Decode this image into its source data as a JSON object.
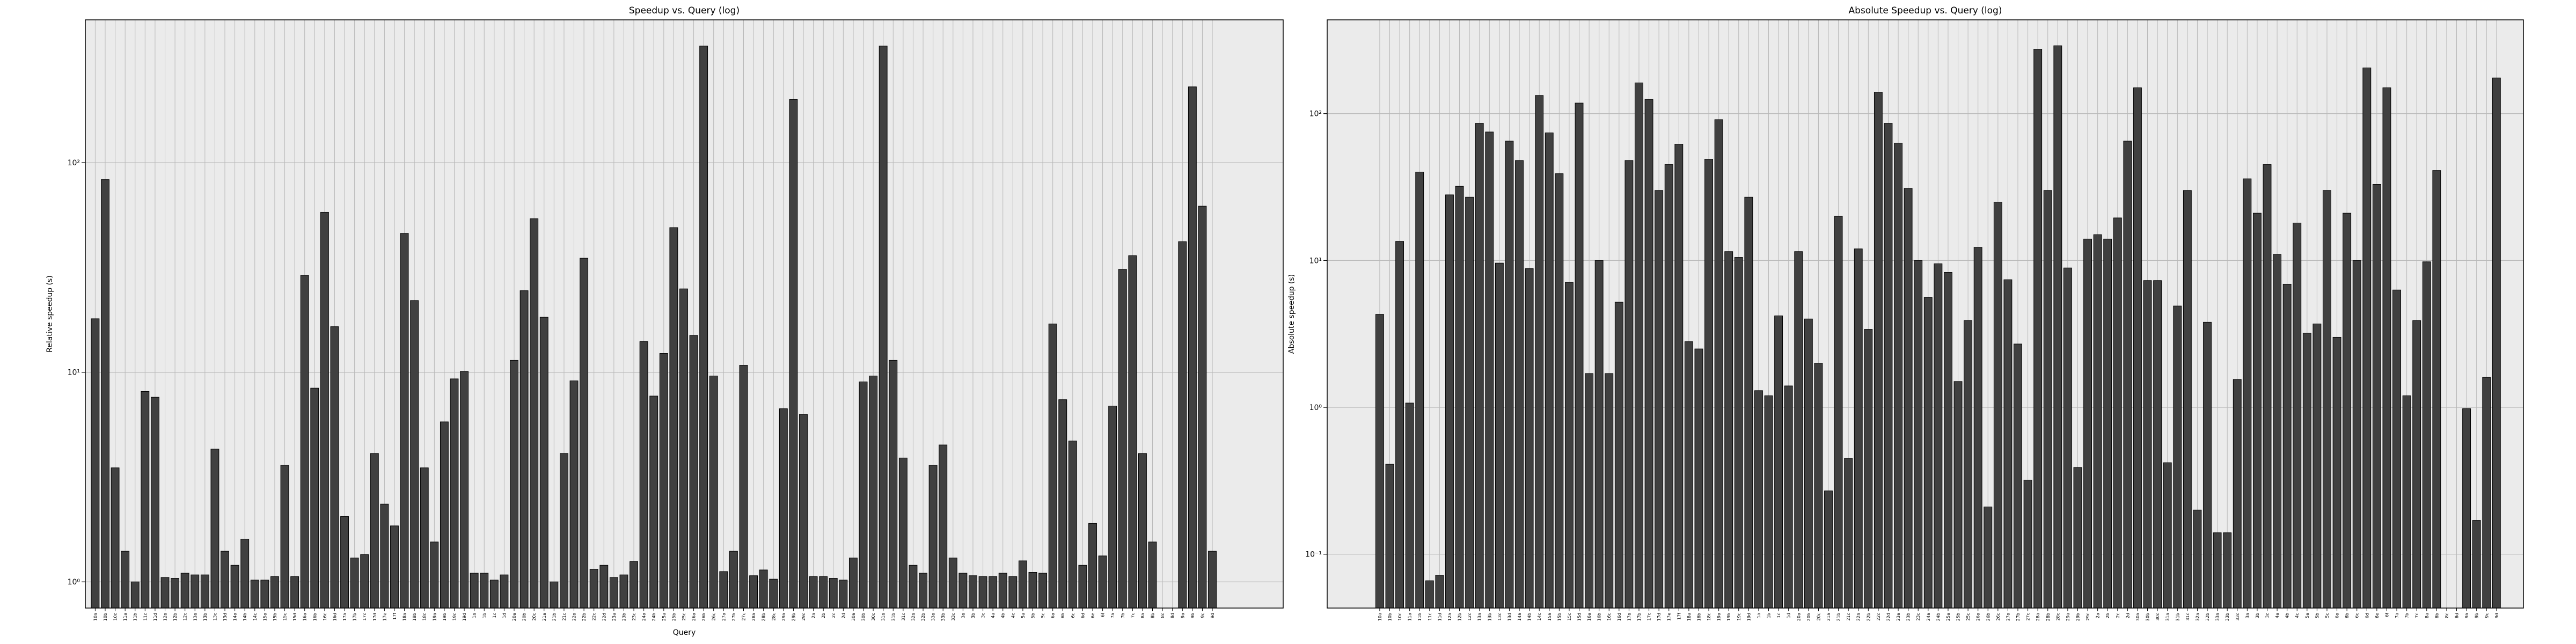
{
  "chart_data": [
    {
      "type": "bar",
      "title": "Speedup vs. Query (log)",
      "xlabel": "Query",
      "ylabel": "Relative speedup (s)",
      "categories": [
        "10a",
        "10b",
        "10c",
        "11a",
        "11b",
        "11c",
        "11d",
        "12a",
        "12b",
        "12c",
        "13a",
        "13b",
        "13c",
        "13d",
        "14a",
        "14b",
        "14c",
        "15a",
        "15b",
        "15c",
        "15d",
        "16a",
        "16b",
        "16c",
        "16d",
        "17a",
        "17b",
        "17c",
        "17d",
        "17e",
        "17f",
        "18a",
        "18b",
        "18c",
        "19a",
        "19b",
        "19c",
        "19d",
        "1a",
        "1b",
        "1c",
        "1d",
        "20a",
        "20b",
        "20c",
        "21a",
        "21b",
        "21c",
        "22a",
        "22b",
        "22c",
        "22d",
        "23a",
        "23b",
        "23c",
        "24a",
        "24b",
        "25a",
        "25b",
        "25c",
        "26a",
        "26b",
        "26c",
        "27a",
        "27b",
        "27c",
        "28a",
        "28b",
        "28c",
        "29a",
        "29b",
        "29c",
        "2a",
        "2b",
        "2c",
        "2d",
        "30a",
        "30b",
        "30c",
        "31a",
        "31b",
        "31c",
        "32a",
        "32b",
        "33a",
        "33b",
        "33c",
        "3a",
        "3b",
        "3c",
        "4a",
        "4b",
        "4c",
        "5a",
        "5b",
        "5c",
        "6a",
        "6b",
        "6c",
        "6d",
        "6e",
        "6f",
        "7a",
        "7b",
        "7c",
        "8a",
        "8b",
        "8c",
        "8d",
        "9a",
        "9b",
        "9c",
        "9d"
      ],
      "values": [
        18,
        83,
        3.5,
        1.4,
        1.0,
        8.1,
        7.6,
        1.05,
        1.04,
        1.1,
        1.08,
        1.08,
        4.3,
        1.4,
        1.2,
        1.6,
        1.02,
        1.02,
        1.06,
        3.6,
        1.06,
        29,
        8.4,
        58,
        16.5,
        2.05,
        1.3,
        1.35,
        4.1,
        2.35,
        1.85,
        46,
        22,
        3.5,
        1.55,
        5.8,
        9.3,
        10.1,
        1.1,
        1.1,
        1.02,
        1.08,
        11.4,
        24.5,
        54,
        18.3,
        1.0,
        4.1,
        9.1,
        35,
        1.15,
        1.2,
        1.05,
        1.08,
        1.25,
        14,
        7.7,
        12.3,
        49,
        25,
        15,
        360,
        9.6,
        1.12,
        1.4,
        10.8,
        1.07,
        1.14,
        1.03,
        6.7,
        200,
        6.3,
        1.06,
        1.06,
        1.04,
        1.02,
        1.3,
        9.0,
        9.6,
        360,
        11.4,
        3.9,
        1.2,
        1.1,
        3.6,
        4.5,
        1.3,
        1.1,
        1.07,
        1.06,
        1.06,
        1.1,
        1.06,
        1.26,
        1.11,
        1.1,
        17,
        7.4,
        4.7,
        1.2,
        1.9,
        1.33,
        6.9,
        31,
        36,
        4.1,
        1.55,
        null,
        null,
        42,
        230,
        62,
        1.4
      ],
      "color": "#404040",
      "log_y": true,
      "grid": true,
      "ylim": [
        0.75,
        480
      ],
      "yticks": [
        {
          "value": 1,
          "label": "10⁰"
        },
        {
          "value": 10,
          "label": "10¹"
        },
        {
          "value": 100,
          "label": "10²"
        }
      ]
    },
    {
      "type": "bar",
      "title": "Absolute Speedup vs. Query (log)",
      "ylabel": "Absolute speedup (s)",
      "categories": [
        "10a",
        "10b",
        "10c",
        "11a",
        "11b",
        "11c",
        "11d",
        "12a",
        "12b",
        "12c",
        "13a",
        "13b",
        "13c",
        "13d",
        "14a",
        "14b",
        "14c",
        "15a",
        "15b",
        "15c",
        "15d",
        "16a",
        "16b",
        "16c",
        "16d",
        "17a",
        "17b",
        "17c",
        "17d",
        "17e",
        "17f",
        "18a",
        "18b",
        "18c",
        "19a",
        "19b",
        "19c",
        "19d",
        "1a",
        "1b",
        "1c",
        "1d",
        "20a",
        "20b",
        "20c",
        "21a",
        "21b",
        "21c",
        "22a",
        "22b",
        "22c",
        "22d",
        "23a",
        "23b",
        "23c",
        "24a",
        "24b",
        "25a",
        "25b",
        "25c",
        "26a",
        "26b",
        "26c",
        "27a",
        "27b",
        "27c",
        "28a",
        "28b",
        "28c",
        "29a",
        "29b",
        "29c",
        "2a",
        "2b",
        "2c",
        "2d",
        "30a",
        "30b",
        "30c",
        "31a",
        "31b",
        "31c",
        "32a",
        "32b",
        "33a",
        "33b",
        "33c",
        "3a",
        "3b",
        "3c",
        "4a",
        "4b",
        "4c",
        "5a",
        "5b",
        "5c",
        "6a",
        "6b",
        "6c",
        "6d",
        "6e",
        "6f",
        "7a",
        "7b",
        "7c",
        "8a",
        "8b",
        "8c",
        "8d",
        "9a",
        "9b",
        "9c",
        "9d"
      ],
      "values": [
        4.3,
        0.41,
        13.5,
        1.07,
        40,
        0.066,
        0.072,
        28,
        32,
        27,
        86,
        75,
        9.6,
        65,
        48,
        8.8,
        133,
        74,
        39,
        7.1,
        118,
        1.7,
        10,
        1.7,
        5.2,
        48,
        162,
        125,
        30,
        45,
        62,
        2.8,
        2.5,
        49,
        91,
        11.5,
        10.5,
        27,
        1.3,
        1.2,
        4.2,
        1.4,
        11.5,
        4.0,
        2.0,
        0.27,
        20,
        0.45,
        12,
        3.4,
        140,
        86,
        63,
        31,
        10,
        5.6,
        9.5,
        8.3,
        1.5,
        3.9,
        12.3,
        0.21,
        25,
        7.4,
        2.7,
        0.32,
        275,
        30,
        290,
        8.9,
        0.39,
        14,
        15,
        14,
        19.5,
        65,
        150,
        7.3,
        7.3,
        0.42,
        4.9,
        30,
        0.2,
        3.8,
        0.14,
        0.14,
        1.55,
        36,
        21,
        45,
        11,
        6.9,
        18,
        3.2,
        3.7,
        30,
        3.0,
        21,
        10,
        205,
        33,
        150,
        6.3,
        1.2,
        3.9,
        9.8,
        41,
        null,
        null,
        0.98,
        0.17,
        1.6,
        175
      ],
      "color": "#404040",
      "log_y": true,
      "grid": true,
      "ylim": [
        0.043,
        435
      ],
      "yticks": [
        {
          "value": 0.1,
          "label": "10⁻¹"
        },
        {
          "value": 1,
          "label": "10⁰"
        },
        {
          "value": 10,
          "label": "10¹"
        },
        {
          "value": 100,
          "label": "10²"
        }
      ]
    }
  ]
}
